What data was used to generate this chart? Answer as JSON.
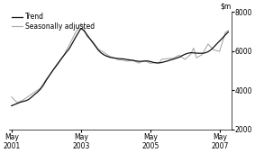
{
  "ylim": [
    2000,
    8000
  ],
  "yticks": [
    2000,
    4000,
    6000,
    8000
  ],
  "ytick_labels": [
    "2000",
    "4000",
    "6000",
    "8000"
  ],
  "xtick_labels": [
    "May\n2001",
    "May\n2003",
    "May\n2005",
    "May\n2007"
  ],
  "xtick_positions": [
    0,
    24,
    48,
    72
  ],
  "legend_labels": [
    "Trend",
    "Seasonally adjusted"
  ],
  "trend_color": "#111111",
  "seasonal_color": "#aaaaaa",
  "background_color": "#ffffff",
  "trend_x": [
    0,
    1,
    2,
    3,
    4,
    5,
    6,
    7,
    8,
    9,
    10,
    11,
    12,
    13,
    14,
    15,
    16,
    17,
    18,
    19,
    20,
    21,
    22,
    23,
    24,
    25,
    26,
    27,
    28,
    29,
    30,
    31,
    32,
    33,
    34,
    35,
    36,
    37,
    38,
    39,
    40,
    41,
    42,
    43,
    44,
    45,
    46,
    47,
    48,
    49,
    50,
    51,
    52,
    53,
    54,
    55,
    56,
    57,
    58,
    59,
    60,
    61,
    62,
    63,
    64,
    65,
    66,
    67,
    68,
    69,
    70,
    71,
    72,
    73,
    74,
    75
  ],
  "trend_y": [
    3200,
    3260,
    3320,
    3380,
    3420,
    3460,
    3530,
    3650,
    3780,
    3900,
    4050,
    4250,
    4500,
    4720,
    4940,
    5150,
    5360,
    5560,
    5750,
    5940,
    6120,
    6380,
    6650,
    6900,
    7150,
    7050,
    6850,
    6650,
    6450,
    6250,
    6050,
    5900,
    5800,
    5730,
    5680,
    5650,
    5630,
    5610,
    5600,
    5590,
    5560,
    5540,
    5520,
    5490,
    5470,
    5470,
    5480,
    5490,
    5460,
    5420,
    5390,
    5390,
    5410,
    5450,
    5490,
    5540,
    5580,
    5630,
    5680,
    5760,
    5830,
    5880,
    5910,
    5900,
    5890,
    5880,
    5880,
    5900,
    5960,
    6060,
    6200,
    6360,
    6510,
    6660,
    6820,
    6970
  ],
  "seasonal_x": [
    0,
    2,
    4,
    6,
    8,
    10,
    12,
    14,
    16,
    18,
    20,
    22,
    24,
    25,
    26,
    28,
    30,
    32,
    34,
    36,
    37,
    38,
    40,
    42,
    44,
    46,
    48,
    50,
    51,
    52,
    54,
    56,
    58,
    60,
    62,
    63,
    64,
    66,
    68,
    70,
    72,
    74,
    75
  ],
  "seasonal_y": [
    3650,
    3350,
    3500,
    3700,
    3900,
    4100,
    4550,
    4950,
    5300,
    5750,
    6300,
    6900,
    7400,
    7200,
    6750,
    6500,
    6100,
    5920,
    5720,
    5620,
    5540,
    5540,
    5480,
    5520,
    5380,
    5510,
    5370,
    5410,
    5380,
    5580,
    5610,
    5630,
    5780,
    5570,
    5830,
    6150,
    5650,
    5820,
    6350,
    6050,
    5980,
    6950,
    7050
  ]
}
